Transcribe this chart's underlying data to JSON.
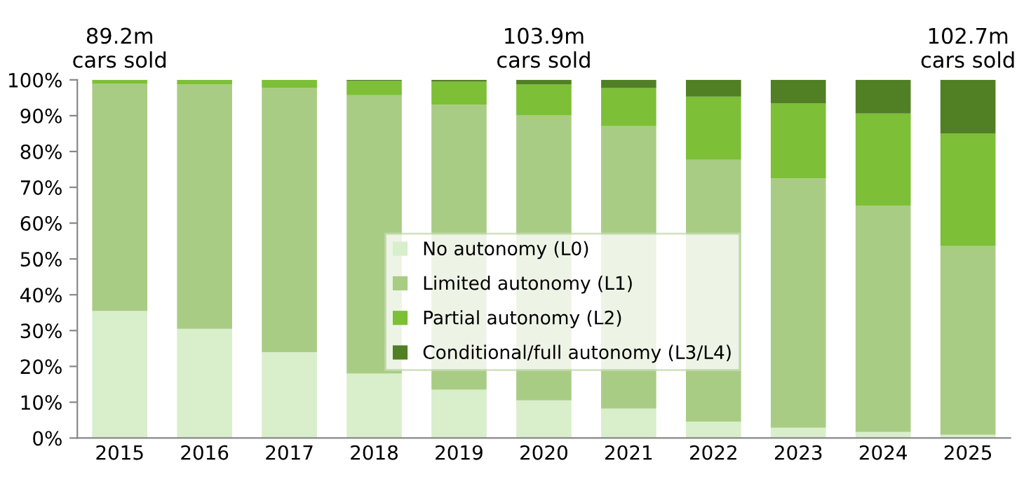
{
  "chart_data": {
    "type": "bar",
    "stacked": true,
    "categories": [
      "2015",
      "2016",
      "2017",
      "2018",
      "2019",
      "2020",
      "2021",
      "2022",
      "2023",
      "2024",
      "2025"
    ],
    "series": [
      {
        "name": "No autonomy (L0)",
        "color": "#d9eecb",
        "values": [
          35.5,
          30.5,
          24,
          18,
          13.5,
          10.5,
          8.2,
          4.6,
          2.9,
          1.7,
          0.9
        ]
      },
      {
        "name": "Limited autonomy (L1)",
        "color": "#a9cc84",
        "values": [
          63.5,
          68.2,
          73.7,
          77.7,
          79.5,
          79.7,
          78.9,
          73.1,
          69.6,
          63.1,
          52.7
        ]
      },
      {
        "name": "Partial autonomy (L2)",
        "color": "#7dbf36",
        "values": [
          1,
          1.3,
          2.3,
          4,
          6.5,
          8.5,
          10.6,
          17.6,
          20.9,
          25.8,
          31.4
        ]
      },
      {
        "name": "Conditional/full autonomy (L3/L4)",
        "color": "#507f24",
        "values": [
          0,
          0,
          0,
          0.3,
          0.5,
          1.3,
          2.3,
          4.7,
          6.6,
          9.4,
          15
        ]
      }
    ],
    "ylim": [
      0,
      100
    ],
    "yticks": [
      {
        "value": 0,
        "label": "0%"
      },
      {
        "value": 10,
        "label": "10%"
      },
      {
        "value": 20,
        "label": "20%"
      },
      {
        "value": 30,
        "label": "30%"
      },
      {
        "value": 40,
        "label": "40%"
      },
      {
        "value": 50,
        "label": "50%"
      },
      {
        "value": 60,
        "label": "60%"
      },
      {
        "value": 70,
        "label": "70%"
      },
      {
        "value": 80,
        "label": "80%"
      },
      {
        "value": 90,
        "label": "90%"
      },
      {
        "value": 100,
        "label": "100%"
      }
    ],
    "annotations": [
      {
        "text": "89.2m\ncars sold",
        "x": "2015",
        "y": 100
      },
      {
        "text": "103.9m\ncars sold",
        "x": "2020",
        "y": 100
      },
      {
        "text": "102.7m\ncars sold",
        "x": "2025",
        "y": 100
      }
    ],
    "legend": "center",
    "grid": false
  }
}
